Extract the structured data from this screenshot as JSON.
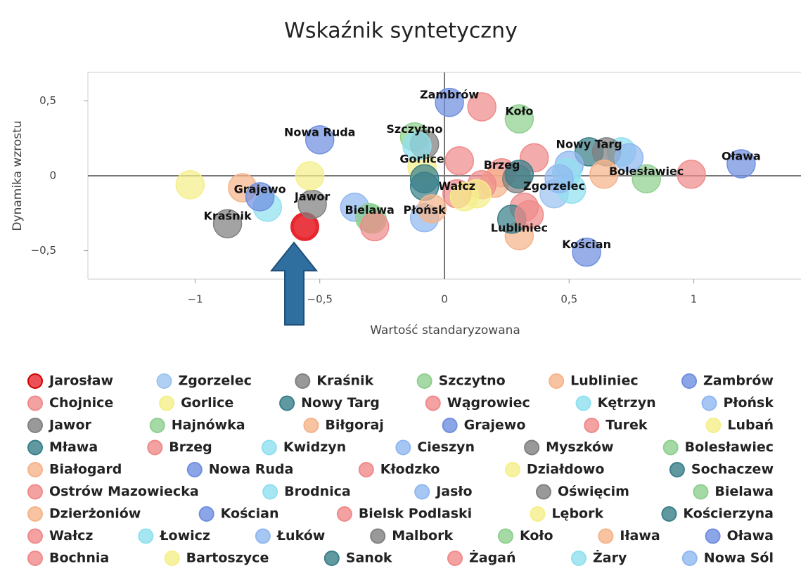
{
  "chart_data": {
    "type": "scatter",
    "title": "Wskaźnik syntetyczny",
    "xlabel": "Wartość standaryzowana",
    "ylabel": "Dynamika wzrostu",
    "xlim": [
      -1.43,
      1.43
    ],
    "ylim": [
      -0.69,
      0.69
    ],
    "xticks": [
      {
        "value": -1,
        "label": "−1"
      },
      {
        "value": -0.5,
        "label": "−0,5"
      },
      0,
      {
        "value": 0.5,
        "label": "0,5"
      },
      1
    ],
    "yticks": [
      {
        "value": -0.5,
        "label": "−0,5"
      },
      0,
      {
        "value": 0.5,
        "label": "0,5"
      }
    ],
    "series": [
      {
        "name": "Jarosław",
        "color": "#e8262e",
        "x": -0.56,
        "y": -0.34
      },
      {
        "name": "Zgorzelec",
        "color": "#9cc4f0",
        "x": 0.44,
        "y": -0.12,
        "labeled": true
      },
      {
        "name": "Kraśnik",
        "color": "#808080",
        "x": -0.87,
        "y": -0.32,
        "labeled": true
      },
      {
        "name": "Szczytno",
        "color": "#8fd08f",
        "x": -0.12,
        "y": 0.26,
        "labeled": true
      },
      {
        "name": "Lubliniec",
        "color": "#f5b48a",
        "x": 0.3,
        "y": -0.4,
        "labeled": true
      },
      {
        "name": "Zambrów",
        "color": "#6f8fe0",
        "x": 0.02,
        "y": 0.49,
        "labeled": true
      },
      {
        "name": "Chojnice",
        "color": "#f08a8a",
        "x": 0.15,
        "y": 0.46
      },
      {
        "name": "Gorlice",
        "color": "#f5ef8a",
        "x": -0.09,
        "y": 0.06,
        "labeled": true
      },
      {
        "name": "Nowy Targ",
        "color": "#3a7f8a",
        "x": 0.58,
        "y": 0.16,
        "labeled": true
      },
      {
        "name": "Wągrowiec",
        "color": "#f08a8a",
        "x": 0.32,
        "y": -0.21
      },
      {
        "name": "Kętrzyn",
        "color": "#90e0f0",
        "x": -0.71,
        "y": -0.21
      },
      {
        "name": "Płońsk",
        "color": "#90b8f0",
        "x": -0.08,
        "y": -0.28,
        "labeled": true
      },
      {
        "name": "Jawor",
        "color": "#808080",
        "x": -0.53,
        "y": -0.19,
        "labeled": true
      },
      {
        "name": "Hajnówka",
        "color": "#8fd08f",
        "x": -0.29,
        "y": -0.29
      },
      {
        "name": "Biłgoraj",
        "color": "#f5b48a",
        "x": -0.81,
        "y": -0.08
      },
      {
        "name": "Grajewo",
        "color": "#6f8fe0",
        "x": -0.74,
        "y": -0.14,
        "labeled": true
      },
      {
        "name": "Turek",
        "color": "#f08a8a",
        "x": 0.36,
        "y": 0.12
      },
      {
        "name": "Lubań",
        "color": "#f5ef8a",
        "x": -1.02,
        "y": -0.06
      },
      {
        "name": "Mława",
        "color": "#3a7f8a",
        "x": -0.08,
        "y": -0.02
      },
      {
        "name": "Brzeg",
        "color": "#f08a8a",
        "x": 0.23,
        "y": 0.02,
        "labeled": true
      },
      {
        "name": "Kwidzyn",
        "color": "#90e0f0",
        "x": 0.71,
        "y": 0.16
      },
      {
        "name": "Cieszyn",
        "color": "#90b8f0",
        "x": -0.36,
        "y": -0.21
      },
      {
        "name": "Myszków",
        "color": "#808080",
        "x": -0.08,
        "y": 0.21
      },
      {
        "name": "Bolesławiec",
        "color": "#8fd08f",
        "x": 0.81,
        "y": -0.02,
        "labeled": true
      },
      {
        "name": "Białogard",
        "color": "#f5b48a",
        "x": 0.2,
        "y": -0.05
      },
      {
        "name": "Nowa Ruda",
        "color": "#6f8fe0",
        "x": -0.5,
        "y": 0.24,
        "labeled": true
      },
      {
        "name": "Kłodzko",
        "color": "#f08a8a",
        "x": 0.06,
        "y": 0.1
      },
      {
        "name": "Działdowo",
        "color": "#f5ef8a",
        "x": -0.54,
        "y": 0.0
      },
      {
        "name": "Sochaczew",
        "color": "#3a7f8a",
        "x": -0.08,
        "y": -0.07
      },
      {
        "name": "Ostrów Mazowiecka",
        "color": "#f08a8a",
        "x": 0.15,
        "y": -0.06
      },
      {
        "name": "Brodnica",
        "color": "#90e0f0",
        "x": -0.11,
        "y": 0.2
      },
      {
        "name": "Jasło",
        "color": "#90b8f0",
        "x": 0.5,
        "y": 0.07
      },
      {
        "name": "Oświęcim",
        "color": "#808080",
        "x": 0.65,
        "y": 0.16
      },
      {
        "name": "Bielawa",
        "color": "#8fd08f",
        "x": -0.3,
        "y": -0.28,
        "labeled": true
      },
      {
        "name": "Dzierżoniów",
        "color": "#f5b48a",
        "x": -0.05,
        "y": -0.22
      },
      {
        "name": "Kościan",
        "color": "#6f8fe0",
        "x": 0.57,
        "y": -0.51,
        "labeled": true
      },
      {
        "name": "Bielsk Podlaski",
        "color": "#f08a8a",
        "x": -0.28,
        "y": -0.34
      },
      {
        "name": "Lębork",
        "color": "#f5ef8a",
        "x": 0.13,
        "y": -0.12
      },
      {
        "name": "Kościerzyna",
        "color": "#3a7f8a",
        "x": 0.27,
        "y": -0.29
      },
      {
        "name": "Wałcz",
        "color": "#f08a8a",
        "x": 0.05,
        "y": -0.12,
        "labeled": true
      },
      {
        "name": "Łowicz",
        "color": "#90e0f0",
        "x": 0.49,
        "y": 0.02
      },
      {
        "name": "Łuków",
        "color": "#90b8f0",
        "x": 0.74,
        "y": 0.12
      },
      {
        "name": "Malbork",
        "color": "#808080",
        "x": 0.29,
        "y": -0.02
      },
      {
        "name": "Koło",
        "color": "#8fd08f",
        "x": 0.3,
        "y": 0.38,
        "labeled": true
      },
      {
        "name": "Iława",
        "color": "#f5b48a",
        "x": 0.64,
        "y": 0.01
      },
      {
        "name": "Oława",
        "color": "#6f8fe0",
        "x": 1.19,
        "y": 0.08,
        "labeled": true
      },
      {
        "name": "Bochnia",
        "color": "#f08a8a",
        "x": 0.99,
        "y": 0.01
      },
      {
        "name": "Bartoszyce",
        "color": "#f5ef8a",
        "x": 0.08,
        "y": -0.14
      },
      {
        "name": "Sanok",
        "color": "#3a7f8a",
        "x": 0.3,
        "y": 0.01
      },
      {
        "name": "Żagań",
        "color": "#f08a8a",
        "x": 0.34,
        "y": -0.26
      },
      {
        "name": "Żary",
        "color": "#90e0f0",
        "x": 0.51,
        "y": -0.09
      },
      {
        "name": "Nowa Sól",
        "color": "#90b8f0",
        "x": 0.46,
        "y": -0.02
      }
    ]
  }
}
